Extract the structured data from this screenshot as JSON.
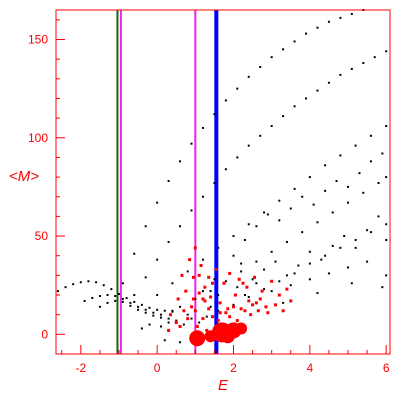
{
  "chart_data": {
    "type": "scatter",
    "xlabel": "E",
    "ylabel": "<M>",
    "xlim": [
      -2.65,
      6.1
    ],
    "ylim": [
      -10,
      165
    ],
    "x_ticks": [
      -2,
      0,
      2,
      4,
      6
    ],
    "y_ticks": [
      0,
      50,
      100,
      150
    ],
    "colors": {
      "frame": "#ff0000",
      "tick_labels": "#ff0000",
      "black_points": "#000000",
      "red_points": "#ff0000",
      "line_darkgreen": "#116611",
      "line_magenta": "#ee22ee",
      "line_blue": "#0000ff"
    },
    "vertical_lines": [
      {
        "x": -1.04,
        "color": "#116611"
      },
      {
        "x": -0.95,
        "color": "#ee22ee"
      },
      {
        "x": 1.0,
        "color": "#ee22ee"
      },
      {
        "x": 1.55,
        "color": "#0000ff"
      }
    ],
    "series": [
      {
        "color": "#000000",
        "values": [
          [
            -2.6,
            22
          ],
          [
            -2.4,
            24
          ],
          [
            -2.2,
            25.5
          ],
          [
            -2.0,
            26.5
          ],
          [
            -1.8,
            27
          ],
          [
            -1.6,
            26.5
          ],
          [
            -1.4,
            25
          ],
          [
            -1.2,
            23
          ],
          [
            -1.0,
            20.5
          ],
          [
            -0.8,
            18.5
          ],
          [
            -0.6,
            16.5
          ],
          [
            -0.4,
            15
          ],
          [
            -0.2,
            13.5
          ],
          [
            0.0,
            12.5
          ],
          [
            0.2,
            12
          ],
          [
            0.4,
            11.5
          ],
          [
            -1.9,
            17
          ],
          [
            -1.7,
            18.5
          ],
          [
            -1.5,
            19.5
          ],
          [
            -1.3,
            20
          ],
          [
            -1.1,
            19.5
          ],
          [
            -0.9,
            18
          ],
          [
            -0.7,
            16
          ],
          [
            -0.5,
            14
          ],
          [
            -0.3,
            12.5
          ],
          [
            -0.1,
            11
          ],
          [
            0.1,
            10
          ],
          [
            -1.5,
            14
          ],
          [
            -1.3,
            16
          ],
          [
            -1.1,
            17
          ],
          [
            -0.9,
            16.5
          ],
          [
            -0.7,
            14.5
          ],
          [
            -0.5,
            12.5
          ],
          [
            -0.3,
            11
          ],
          [
            -0.1,
            9.5
          ],
          [
            0.1,
            8.5
          ],
          [
            0.3,
            8
          ],
          [
            -0.9,
            26
          ],
          [
            -0.6,
            41
          ],
          [
            -0.3,
            55
          ],
          [
            0.0,
            67
          ],
          [
            0.3,
            78
          ],
          [
            0.6,
            88
          ],
          [
            0.9,
            97
          ],
          [
            1.2,
            105
          ],
          [
            1.5,
            112
          ],
          [
            1.8,
            119
          ],
          [
            2.1,
            125
          ],
          [
            2.4,
            131
          ],
          [
            2.7,
            136
          ],
          [
            3.0,
            141
          ],
          [
            3.3,
            145
          ],
          [
            3.6,
            149
          ],
          [
            3.9,
            153
          ],
          [
            4.2,
            156
          ],
          [
            4.5,
            159
          ],
          [
            4.8,
            161
          ],
          [
            5.1,
            163
          ],
          [
            5.4,
            165
          ],
          [
            -0.6,
            20
          ],
          [
            -0.3,
            29
          ],
          [
            0.0,
            38
          ],
          [
            0.3,
            47
          ],
          [
            0.6,
            55
          ],
          [
            0.9,
            63
          ],
          [
            1.2,
            70
          ],
          [
            1.5,
            77
          ],
          [
            1.8,
            84
          ],
          [
            2.1,
            90
          ],
          [
            2.4,
            96
          ],
          [
            2.7,
            101
          ],
          [
            3.0,
            106
          ],
          [
            3.3,
            111
          ],
          [
            3.6,
            116
          ],
          [
            3.9,
            120
          ],
          [
            4.2,
            124
          ],
          [
            4.5,
            128
          ],
          [
            4.8,
            132
          ],
          [
            5.1,
            135
          ],
          [
            5.4,
            138
          ],
          [
            5.7,
            141
          ],
          [
            6.0,
            144
          ],
          [
            0.0,
            20
          ],
          [
            0.4,
            26
          ],
          [
            0.8,
            32
          ],
          [
            1.2,
            38
          ],
          [
            1.6,
            44
          ],
          [
            2.0,
            50
          ],
          [
            2.4,
            56
          ],
          [
            2.8,
            62
          ],
          [
            3.2,
            68
          ],
          [
            3.6,
            74
          ],
          [
            4.0,
            80
          ],
          [
            4.4,
            86
          ],
          [
            4.8,
            91
          ],
          [
            5.2,
            96
          ],
          [
            5.6,
            101
          ],
          [
            6.0,
            106
          ],
          [
            0.6,
            14
          ],
          [
            1.0,
            18
          ],
          [
            1.4,
            22
          ],
          [
            1.8,
            27
          ],
          [
            2.2,
            32
          ],
          [
            2.6,
            37
          ],
          [
            3.0,
            42
          ],
          [
            3.4,
            47
          ],
          [
            3.8,
            52
          ],
          [
            4.2,
            57
          ],
          [
            4.6,
            62
          ],
          [
            5.0,
            67
          ],
          [
            5.4,
            72
          ],
          [
            5.8,
            77
          ],
          [
            6.0,
            80
          ],
          [
            1.6,
            12
          ],
          [
            2.0,
            15
          ],
          [
            2.4,
            19
          ],
          [
            2.8,
            23
          ],
          [
            3.2,
            27
          ],
          [
            3.6,
            31
          ],
          [
            4.0,
            36
          ],
          [
            4.4,
            40
          ],
          [
            4.8,
            44
          ],
          [
            5.2,
            48
          ],
          [
            5.6,
            52
          ],
          [
            6.0,
            56
          ],
          [
            2.0,
            40
          ],
          [
            2.3,
            48
          ],
          [
            2.6,
            55
          ],
          [
            2.9,
            61
          ],
          [
            3.2,
            58
          ],
          [
            3.5,
            64
          ],
          [
            3.8,
            70
          ],
          [
            4.1,
            66
          ],
          [
            4.4,
            73
          ],
          [
            4.7,
            78
          ],
          [
            5.0,
            75
          ],
          [
            5.3,
            82
          ],
          [
            5.6,
            88
          ],
          [
            5.9,
            92
          ],
          [
            1.5,
            28
          ],
          [
            1.9,
            31
          ],
          [
            2.2,
            36
          ],
          [
            2.5,
            28
          ],
          [
            2.8,
            33
          ],
          [
            3.1,
            37
          ],
          [
            3.4,
            30
          ],
          [
            3.7,
            35
          ],
          [
            4.0,
            42
          ],
          [
            4.3,
            38
          ],
          [
            4.6,
            45
          ],
          [
            4.9,
            50
          ],
          [
            5.2,
            44
          ],
          [
            5.5,
            53
          ],
          [
            5.8,
            60
          ],
          [
            6.0,
            48
          ],
          [
            1.2,
            22
          ],
          [
            1.6,
            20
          ],
          [
            2.1,
            24
          ],
          [
            2.6,
            26
          ],
          [
            3.0,
            22
          ],
          [
            3.5,
            25
          ],
          [
            4.0,
            28
          ],
          [
            4.5,
            31
          ],
          [
            5.0,
            34
          ],
          [
            5.5,
            37
          ],
          [
            6.0,
            30
          ],
          [
            -0.2,
            5
          ],
          [
            0.1,
            4
          ],
          [
            0.3,
            6
          ],
          [
            0.5,
            7
          ],
          [
            0.7,
            5
          ],
          [
            0.9,
            8
          ],
          [
            1.1,
            6
          ],
          [
            1.3,
            9
          ],
          [
            -0.4,
            3
          ],
          [
            0.2,
            -3
          ],
          [
            0.6,
            -4
          ],
          [
            1.0,
            1
          ],
          [
            0.8,
            10
          ],
          [
            0.4,
            12
          ],
          [
            1.4,
            14
          ],
          [
            2.3,
            20
          ],
          [
            3.3,
            16
          ],
          [
            4.2,
            21
          ],
          [
            5.1,
            26
          ],
          [
            5.9,
            24
          ]
        ]
      },
      {
        "color": "#ff0000",
        "values": [
          [
            0.95,
            29
          ],
          [
            1.1,
            21
          ],
          [
            1.2,
            18
          ],
          [
            1.35,
            13
          ],
          [
            1.45,
            9
          ],
          [
            1.6,
            7
          ],
          [
            1.8,
            11
          ],
          [
            2.0,
            14
          ],
          [
            2.2,
            13
          ],
          [
            2.4,
            17
          ],
          [
            2.5,
            15
          ],
          [
            2.6,
            16
          ],
          [
            2.7,
            18
          ],
          [
            2.9,
            11
          ],
          [
            3.1,
            15
          ],
          [
            3.3,
            12
          ],
          [
            1.05,
            4
          ],
          [
            1.2,
            8
          ],
          [
            1.3,
            2
          ],
          [
            1.5,
            3
          ],
          [
            1.7,
            5
          ],
          [
            1.9,
            9
          ],
          [
            2.1,
            7
          ],
          [
            2.3,
            12
          ],
          [
            2.45,
            10
          ],
          [
            0.9,
            14
          ],
          [
            0.8,
            8
          ],
          [
            0.6,
            4
          ],
          [
            1.0,
            12
          ],
          [
            1.25,
            24
          ],
          [
            1.4,
            19
          ],
          [
            1.65,
            16
          ],
          [
            0.85,
            38
          ],
          [
            1.0,
            44
          ],
          [
            1.15,
            35
          ],
          [
            1.9,
            31
          ],
          [
            2.15,
            28
          ],
          [
            2.35,
            24
          ],
          [
            2.55,
            29
          ],
          [
            2.75,
            22
          ],
          [
            3.0,
            27
          ],
          [
            1.75,
            26
          ],
          [
            1.55,
            33
          ],
          [
            1.35,
            29
          ],
          [
            1.25,
            17
          ],
          [
            0.75,
            22
          ],
          [
            0.65,
            30
          ],
          [
            0.55,
            18
          ],
          [
            2.05,
            20
          ],
          [
            2.25,
            26
          ],
          [
            1.85,
            13
          ],
          [
            1.65,
            11
          ],
          [
            1.45,
            26
          ],
          [
            1.1,
            30
          ],
          [
            0.95,
            18
          ],
          [
            0.7,
            12
          ],
          [
            0.5,
            6
          ],
          [
            0.35,
            10
          ],
          [
            0.3,
            2
          ],
          [
            2.65,
            12
          ],
          [
            2.85,
            14
          ],
          [
            3.2,
            20
          ],
          [
            3.4,
            23
          ],
          [
            3.5,
            17
          ]
        ],
        "bubbles": [
          [
            1.05,
            -2,
            8
          ],
          [
            1.7,
            1,
            10
          ],
          [
            2.0,
            2,
            8
          ],
          [
            1.4,
            -1,
            6
          ],
          [
            1.85,
            -1,
            7
          ],
          [
            2.2,
            3,
            6
          ]
        ]
      }
    ]
  }
}
